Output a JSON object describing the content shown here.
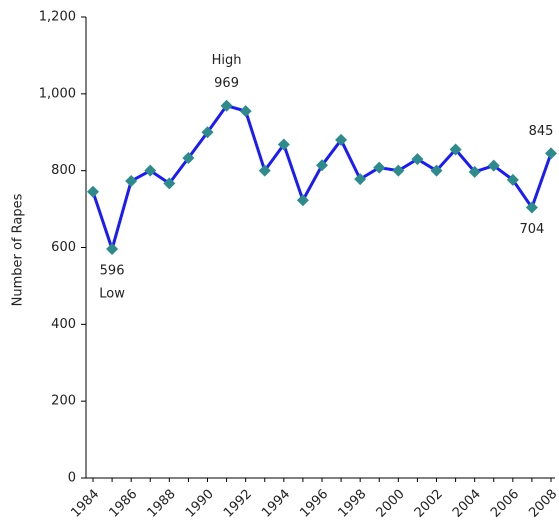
{
  "chart_data": {
    "type": "line",
    "y_label": "Number of Rapes",
    "categories": [
      "1984",
      null,
      "1986",
      null,
      "1988",
      null,
      "1990",
      null,
      "1992",
      null,
      "1994",
      null,
      "1996",
      null,
      "1998",
      null,
      "2000",
      null,
      "2002",
      null,
      "2004",
      null,
      "2006",
      null,
      "2008"
    ],
    "series": [
      {
        "name": "Number of Rapes",
        "color": "#1a1aff",
        "marker_color": "#2e8b8b",
        "values": [
          745,
          596,
          773,
          800,
          767,
          833,
          900,
          969,
          955,
          800,
          868,
          723,
          814,
          880,
          778,
          808,
          800,
          830,
          800,
          855,
          797,
          813,
          776,
          704,
          845
        ],
        "value_labels": [
          null,
          "596",
          null,
          null,
          null,
          null,
          null,
          "969",
          null,
          null,
          null,
          null,
          null,
          null,
          null,
          null,
          null,
          null,
          null,
          null,
          null,
          null,
          null,
          "704",
          "845"
        ]
      }
    ],
    "annotations": {
      "high": "High",
      "low": "Low"
    },
    "ylim": [
      0,
      1200
    ],
    "yticks": [
      0,
      200,
      400,
      600,
      800,
      {
        "value": 1000,
        "label": "1,000"
      },
      {
        "value": 1200,
        "label": "1,200"
      }
    ]
  }
}
